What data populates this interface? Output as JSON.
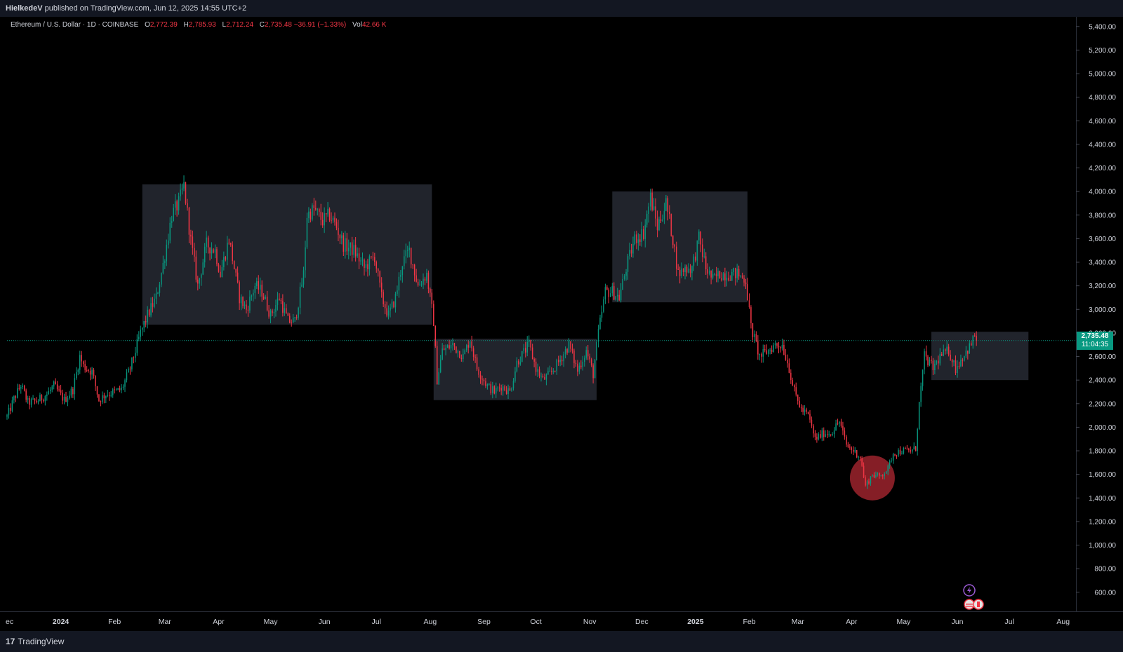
{
  "header": {
    "publisher": "HielkedeV",
    "published_text": "published on TradingView.com, Jun 12, 2025 14:55 UTC+2"
  },
  "legend": {
    "symbol": "Ethereum / U.S. Dollar · 1D · COINBASE",
    "open_label": "O",
    "open": "2,772.39",
    "high_label": "H",
    "high": "2,785.93",
    "low_label": "L",
    "low": "2,712.24",
    "close_label": "C",
    "close": "2,735.48",
    "change": "−36.91 (−1.33%)",
    "vol_label": "Vol",
    "vol": "42.66 K"
  },
  "price_label": {
    "price": "2,735.48",
    "countdown": "11:04:35"
  },
  "footer": {
    "brand": "TradingView"
  },
  "colors": {
    "up": "#089981",
    "down": "#f23645",
    "background": "#000000",
    "box_fill": "#2a2e39",
    "circle": "#b22833",
    "axis_text": "#d1d4dc"
  },
  "chart_data": {
    "type": "candlestick",
    "title": "Ethereum / U.S. Dollar · 1D · COINBASE",
    "y_axis_ticks": [
      "600.00",
      "800.00",
      "1,000.00",
      "1,200.00",
      "1,400.00",
      "1,600.00",
      "1,800.00",
      "2,000.00",
      "2,200.00",
      "2,400.00",
      "2,600.00",
      "2,800.00",
      "3,000.00",
      "3,200.00",
      "3,400.00",
      "3,600.00",
      "3,800.00",
      "4,000.00",
      "4,200.00",
      "4,400.00",
      "4,600.00",
      "4,800.00",
      "5,000.00",
      "5,200.00",
      "5,400.00"
    ],
    "x_axis_ticks": [
      {
        "date": "2023-12-01",
        "label": "ec"
      },
      {
        "date": "2024-01-01",
        "label": "2024"
      },
      {
        "date": "2024-02-01",
        "label": "Feb"
      },
      {
        "date": "2024-03-01",
        "label": "Mar"
      },
      {
        "date": "2024-04-01",
        "label": "Apr"
      },
      {
        "date": "2024-05-01",
        "label": "May"
      },
      {
        "date": "2024-06-01",
        "label": "Jun"
      },
      {
        "date": "2024-07-01",
        "label": "Jul"
      },
      {
        "date": "2024-08-01",
        "label": "Aug"
      },
      {
        "date": "2024-09-01",
        "label": "Sep"
      },
      {
        "date": "2024-10-01",
        "label": "Oct"
      },
      {
        "date": "2024-11-01",
        "label": "Nov"
      },
      {
        "date": "2024-12-01",
        "label": "Dec"
      },
      {
        "date": "2025-01-01",
        "label": "2025"
      },
      {
        "date": "2025-02-01",
        "label": "Feb"
      },
      {
        "date": "2025-03-01",
        "label": "Mar"
      },
      {
        "date": "2025-04-01",
        "label": "Apr"
      },
      {
        "date": "2025-05-01",
        "label": "May"
      },
      {
        "date": "2025-06-01",
        "label": "Jun"
      },
      {
        "date": "2025-07-01",
        "label": "Jul"
      },
      {
        "date": "2025-08-01",
        "label": "Aug"
      }
    ],
    "y_range": [
      450,
      5470
    ],
    "x_range": [
      "2023-12-01",
      "2025-08-08"
    ],
    "last_price": 2735.48,
    "close_path": [
      [
        "2023-12-01",
        2090
      ],
      [
        "2023-12-05",
        2240
      ],
      [
        "2023-12-09",
        2360
      ],
      [
        "2023-12-13",
        2210
      ],
      [
        "2023-12-18",
        2220
      ],
      [
        "2023-12-24",
        2280
      ],
      [
        "2023-12-28",
        2350
      ],
      [
        "2024-01-03",
        2230
      ],
      [
        "2024-01-08",
        2320
      ],
      [
        "2024-01-12",
        2600
      ],
      [
        "2024-01-14",
        2520
      ],
      [
        "2024-01-19",
        2470
      ],
      [
        "2024-01-23",
        2230
      ],
      [
        "2024-01-27",
        2280
      ],
      [
        "2024-02-01",
        2300
      ],
      [
        "2024-02-05",
        2320
      ],
      [
        "2024-02-10",
        2500
      ],
      [
        "2024-02-16",
        2800
      ],
      [
        "2024-02-20",
        2950
      ],
      [
        "2024-02-25",
        3100
      ],
      [
        "2024-02-29",
        3380
      ],
      [
        "2024-03-05",
        3800
      ],
      [
        "2024-03-09",
        3900
      ],
      [
        "2024-03-12",
        4050
      ],
      [
        "2024-03-16",
        3580
      ],
      [
        "2024-03-20",
        3200
      ],
      [
        "2024-03-25",
        3550
      ],
      [
        "2024-03-30",
        3500
      ],
      [
        "2024-04-02",
        3300
      ],
      [
        "2024-04-07",
        3600
      ],
      [
        "2024-04-13",
        3100
      ],
      [
        "2024-04-17",
        3000
      ],
      [
        "2024-04-22",
        3200
      ],
      [
        "2024-04-26",
        3150
      ],
      [
        "2024-05-01",
        2950
      ],
      [
        "2024-05-06",
        3100
      ],
      [
        "2024-05-11",
        2900
      ],
      [
        "2024-05-15",
        2900
      ],
      [
        "2024-05-20",
        3300
      ],
      [
        "2024-05-22",
        3800
      ],
      [
        "2024-05-26",
        3850
      ],
      [
        "2024-05-31",
        3750
      ],
      [
        "2024-06-04",
        3800
      ],
      [
        "2024-06-08",
        3700
      ],
      [
        "2024-06-12",
        3550
      ],
      [
        "2024-06-18",
        3500
      ],
      [
        "2024-06-24",
        3350
      ],
      [
        "2024-06-30",
        3450
      ],
      [
        "2024-07-04",
        3100
      ],
      [
        "2024-07-08",
        2950
      ],
      [
        "2024-07-12",
        3100
      ],
      [
        "2024-07-16",
        3400
      ],
      [
        "2024-07-20",
        3500
      ],
      [
        "2024-07-25",
        3200
      ],
      [
        "2024-07-30",
        3300
      ],
      [
        "2024-08-03",
        2900
      ],
      [
        "2024-08-05",
        2400
      ],
      [
        "2024-08-08",
        2650
      ],
      [
        "2024-08-14",
        2700
      ],
      [
        "2024-08-20",
        2600
      ],
      [
        "2024-08-24",
        2750
      ],
      [
        "2024-08-28",
        2500
      ],
      [
        "2024-09-03",
        2350
      ],
      [
        "2024-09-07",
        2300
      ],
      [
        "2024-09-11",
        2350
      ],
      [
        "2024-09-16",
        2300
      ],
      [
        "2024-09-20",
        2550
      ],
      [
        "2024-09-27",
        2700
      ],
      [
        "2024-10-01",
        2500
      ],
      [
        "2024-10-05",
        2400
      ],
      [
        "2024-10-09",
        2450
      ],
      [
        "2024-10-14",
        2550
      ],
      [
        "2024-10-20",
        2700
      ],
      [
        "2024-10-25",
        2480
      ],
      [
        "2024-10-30",
        2650
      ],
      [
        "2024-11-03",
        2450
      ],
      [
        "2024-11-06",
        2800
      ],
      [
        "2024-11-10",
        3150
      ],
      [
        "2024-11-14",
        3150
      ],
      [
        "2024-11-18",
        3100
      ],
      [
        "2024-11-22",
        3350
      ],
      [
        "2024-11-27",
        3600
      ],
      [
        "2024-12-02",
        3650
      ],
      [
        "2024-12-06",
        3950
      ],
      [
        "2024-12-10",
        3700
      ],
      [
        "2024-12-15",
        3900
      ],
      [
        "2024-12-19",
        3600
      ],
      [
        "2024-12-22",
        3300
      ],
      [
        "2024-12-26",
        3350
      ],
      [
        "2024-12-30",
        3350
      ],
      [
        "2025-01-03",
        3600
      ],
      [
        "2025-01-07",
        3350
      ],
      [
        "2025-01-11",
        3250
      ],
      [
        "2025-01-15",
        3300
      ],
      [
        "2025-01-20",
        3300
      ],
      [
        "2025-01-25",
        3300
      ],
      [
        "2025-01-30",
        3250
      ],
      [
        "2025-02-02",
        2850
      ],
      [
        "2025-02-07",
        2600
      ],
      [
        "2025-02-12",
        2650
      ],
      [
        "2025-02-16",
        2700
      ],
      [
        "2025-02-20",
        2700
      ],
      [
        "2025-02-24",
        2500
      ],
      [
        "2025-02-27",
        2300
      ],
      [
        "2025-03-03",
        2150
      ],
      [
        "2025-03-07",
        2100
      ],
      [
        "2025-03-11",
        1900
      ],
      [
        "2025-03-16",
        1950
      ],
      [
        "2025-03-20",
        1950
      ],
      [
        "2025-03-25",
        2050
      ],
      [
        "2025-03-29",
        1850
      ],
      [
        "2025-04-02",
        1800
      ],
      [
        "2025-04-06",
        1750
      ],
      [
        "2025-04-09",
        1500
      ],
      [
        "2025-04-13",
        1600
      ],
      [
        "2025-04-17",
        1580
      ],
      [
        "2025-04-22",
        1650
      ],
      [
        "2025-04-25",
        1780
      ],
      [
        "2025-04-30",
        1800
      ],
      [
        "2025-05-05",
        1800
      ],
      [
        "2025-05-08",
        1820
      ],
      [
        "2025-05-10",
        2200
      ],
      [
        "2025-05-13",
        2600
      ],
      [
        "2025-05-18",
        2500
      ],
      [
        "2025-05-22",
        2600
      ],
      [
        "2025-05-27",
        2650
      ],
      [
        "2025-05-31",
        2500
      ],
      [
        "2025-06-04",
        2600
      ],
      [
        "2025-06-09",
        2700
      ],
      [
        "2025-06-11",
        2785
      ],
      [
        "2025-06-12",
        2735
      ]
    ],
    "annotations": [
      {
        "type": "rectangle",
        "from": "2024-02-17",
        "to": "2024-08-02",
        "price_low": 2870,
        "price_high": 4060
      },
      {
        "type": "rectangle",
        "from": "2024-08-03",
        "to": "2024-11-05",
        "price_low": 2230,
        "price_high": 2750
      },
      {
        "type": "rectangle",
        "from": "2024-11-14",
        "to": "2025-01-31",
        "price_low": 3060,
        "price_high": 4000
      },
      {
        "type": "rectangle",
        "from": "2025-05-17",
        "to": "2025-07-12",
        "price_low": 2400,
        "price_high": 2810
      },
      {
        "type": "circle",
        "center_date": "2025-04-13",
        "center_price": 1570,
        "label": ""
      }
    ]
  }
}
